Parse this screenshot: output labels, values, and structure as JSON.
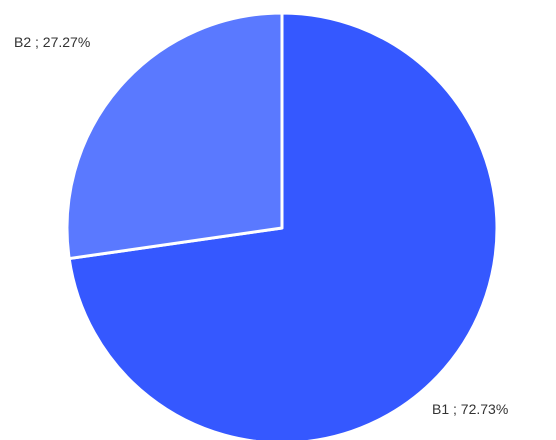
{
  "chart_data": {
    "type": "pie",
    "start_angle": "12 o'clock",
    "direction": "clockwise",
    "slice_border_color": "#ffffff",
    "slices": [
      {
        "name": "B1",
        "value": 72.73,
        "label": "B1 ; 72.73%",
        "color": "#3558ff"
      },
      {
        "name": "B2",
        "value": 27.27,
        "label": "B2 ; 27.27%",
        "color": "#5a79ff"
      }
    ]
  }
}
